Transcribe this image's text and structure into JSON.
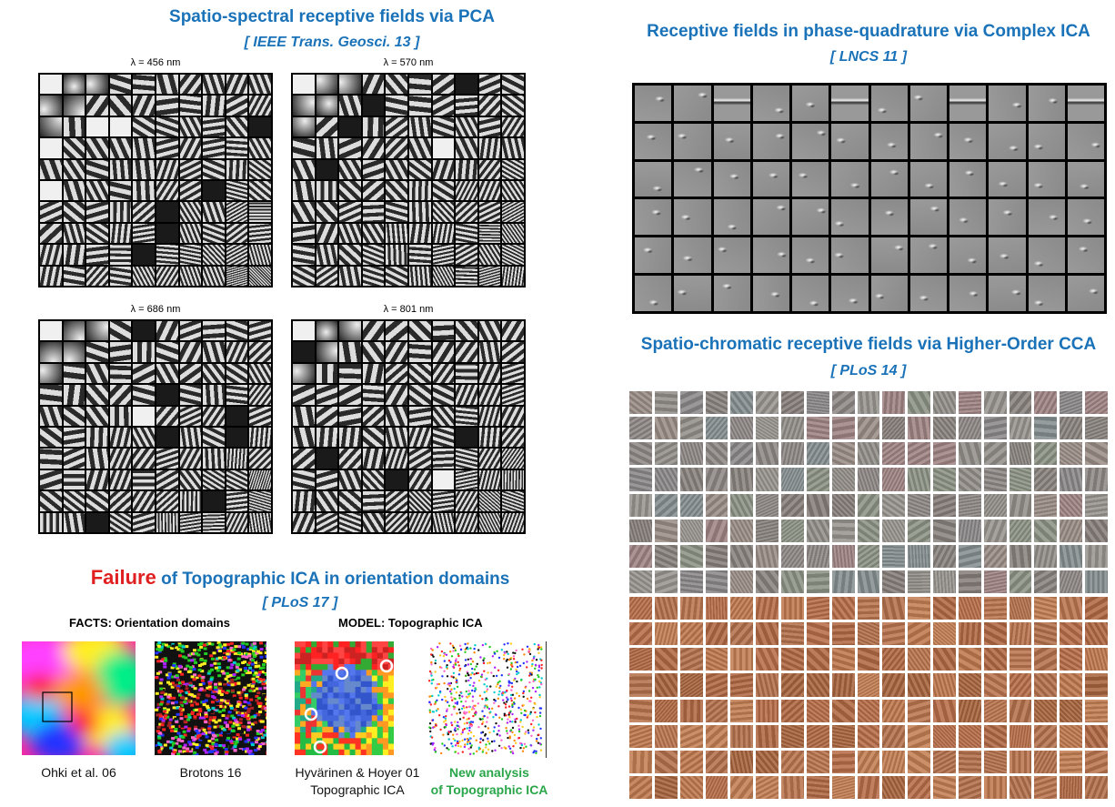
{
  "pca": {
    "title": "Spatio-spectral receptive fields via PCA",
    "ref": "[ IEEE Trans. Geosci. 13 ]",
    "panels": [
      {
        "label": "λ = 456 nm"
      },
      {
        "label": "λ = 570 nm"
      },
      {
        "label": "λ = 686 nm"
      },
      {
        "label": "λ = 801 nm"
      }
    ]
  },
  "complex_ica": {
    "title": "Receptive fields in phase-quadrature via Complex ICA",
    "ref": "[ LNCS 11 ]"
  },
  "cca": {
    "title": "Spatio-chromatic receptive fields via Higher-Order CCA",
    "ref": "[ PLoS 14 ]"
  },
  "topo": {
    "title_highlight": "Failure",
    "title_rest": " of Topographic ICA in orientation domains",
    "ref": "[ PLoS 17 ]",
    "facts_heading": "FACTS: Orientation domains",
    "model_heading": "MODEL: Topographic ICA",
    "captions": {
      "ohki": "Ohki et al. 06",
      "brotons": "Brotons 16",
      "hyvarinen_line1": "Hyvärinen & Hoyer 01",
      "hyvarinen_line2": "Topographic ICA",
      "new_line1": "New analysis",
      "new_line2": "of Topographic ICA"
    }
  },
  "colors": {
    "title_blue": "#1a72b8",
    "failure_red": "#e02020",
    "new_analysis_green": "#2aa64a"
  }
}
